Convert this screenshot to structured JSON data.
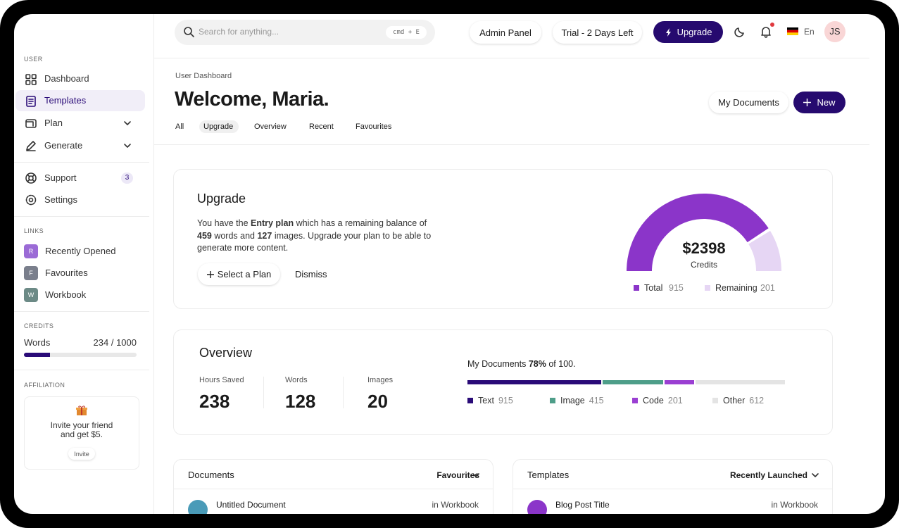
{
  "sidebar": {
    "user_heading": "USER",
    "nav": [
      {
        "label": "Dashboard"
      },
      {
        "label": "Templates"
      },
      {
        "label": "Plan"
      },
      {
        "label": "Generate"
      },
      {
        "label": "Support",
        "badge": 3
      },
      {
        "label": "Settings"
      }
    ],
    "links_heading": "LINKS",
    "links": [
      {
        "initial": "R",
        "label": "Recently Opened",
        "color": "#9b6bd6"
      },
      {
        "initial": "F",
        "label": "Favourites",
        "color": "#7a7f8c"
      },
      {
        "initial": "W",
        "label": "Workbook",
        "color": "#6c8a86"
      }
    ],
    "credits": {
      "heading": "CREDITS",
      "label": "Words",
      "value": 234,
      "max": 1000,
      "value_label": "234 / 1000",
      "color": "#2a0b78"
    },
    "affiliation": {
      "heading": "AFFILIATION",
      "text_lines": [
        "Invite your friend",
        "and get $5."
      ],
      "button": "Invite"
    }
  },
  "topbar": {
    "search_placeholder": "Search for anything...",
    "shortcut": "cmd + E",
    "buttons": [
      "Admin Panel",
      "Trial - 2 Days Left",
      "Upgrade"
    ],
    "language": "En",
    "avatar": "JS"
  },
  "header": {
    "breadcrumb": "User Dashboard",
    "title": "Welcome, Maria.",
    "tabs": [
      "All",
      "Upgrade",
      "Overview",
      "Recent",
      "Favourites"
    ],
    "actions": [
      "My Documents",
      "New"
    ]
  },
  "upgrade_card": {
    "title": "Upgrade",
    "description": [
      "You have the ",
      "Entry plan",
      " which has a remaining balance of ",
      "459",
      " words and ",
      "127",
      " images. Upgrade your plan to be able to generate more content."
    ],
    "buttons": [
      "Select a Plan",
      "Dismiss"
    ],
    "gauge": {
      "amount": "$2398",
      "caption": "Credits",
      "series": [
        {
          "name": "Total",
          "value": 915,
          "color": "#8b35c9"
        },
        {
          "name": "Remaining",
          "value": 201,
          "color": "#e6d6f4"
        }
      ]
    }
  },
  "overview_card": {
    "title": "Overview",
    "stats": [
      {
        "label": "Hours Saved",
        "value": 238
      },
      {
        "label": "Words",
        "value": 128
      },
      {
        "label": "Images",
        "value": 20
      }
    ],
    "usage": {
      "prefix": "My Documents",
      "value_label": "78%",
      "suffix": "of 100.",
      "series": [
        {
          "name": "Text",
          "value": 915,
          "color": "#2a0b78"
        },
        {
          "name": "Image",
          "value": 415,
          "color": "#4e9e89"
        },
        {
          "name": "Code",
          "value": 201,
          "color": "#9a3fd2"
        },
        {
          "name": "Other",
          "value": 612,
          "color": "#e4e4e4"
        }
      ]
    }
  },
  "documents_card": {
    "title": "Documents",
    "filter": "Favourites",
    "rows": [
      {
        "name": "Untitled Document",
        "location": "in Workbook"
      }
    ]
  },
  "templates_card": {
    "title": "Templates",
    "filter": "Recently Launched",
    "rows": [
      {
        "name": "Blog Post Title",
        "location": "in Workbook"
      }
    ]
  }
}
